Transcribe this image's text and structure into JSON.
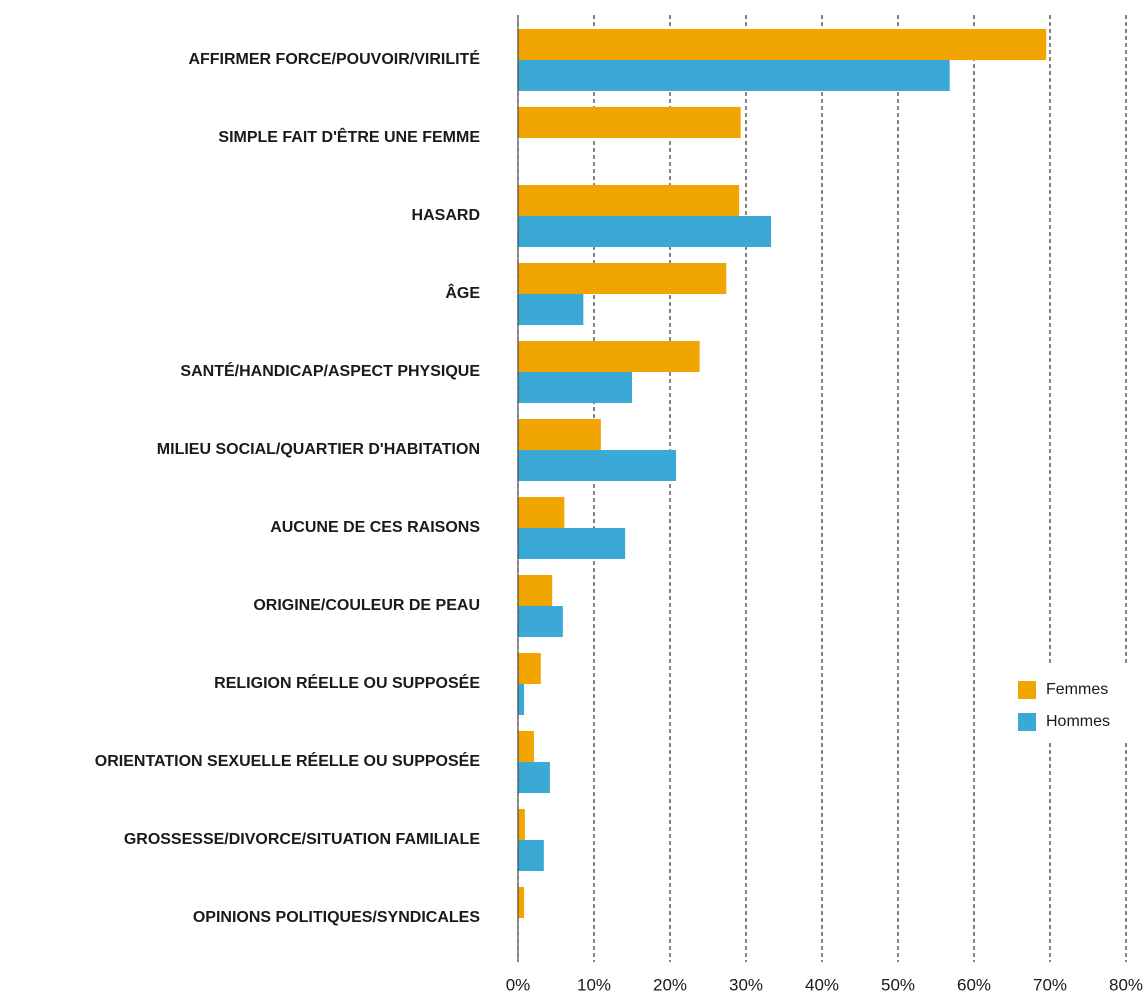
{
  "chart_data": {
    "type": "hbar",
    "categories": [
      "AFFIRMER FORCE/POUVOIR/VIRILITÉ",
      "SIMPLE FAIT D'ÊTRE UNE FEMME",
      "HASARD",
      "ÂGE",
      "SANTÉ/HANDICAP/ASPECT PHYSIQUE",
      "MILIEU SOCIAL/QUARTIER D'HABITATION",
      "AUCUNE DE CES RAISONS",
      "ORIGINE/COULEUR DE PEAU",
      "RELIGION RÉELLE OU SUPPOSÉE",
      "ORIENTATION SEXUELLE RÉELLE OU SUPPOSÉE",
      "GROSSESSE/DIVORCE/SITUATION FAMILIALE",
      "OPINIONS POLITIQUES/SYNDICALES"
    ],
    "series": [
      {
        "name": "Femmes",
        "color": "#f0a500",
        "values": [
          69.5,
          29.3,
          29.1,
          27.4,
          23.9,
          10.9,
          6.1,
          4.5,
          3.0,
          2.1,
          0.9,
          0.8
        ]
      },
      {
        "name": "Hommes",
        "color": "#3aa9d6",
        "values": [
          56.8,
          null,
          33.3,
          8.6,
          15.0,
          20.8,
          14.1,
          5.9,
          0.8,
          4.2,
          3.4,
          null
        ]
      }
    ],
    "xlim": [
      0,
      80
    ],
    "xticks": [
      {
        "value": 0,
        "label": "0%"
      },
      {
        "value": 10,
        "label": "10%"
      },
      {
        "value": 20,
        "label": "20%"
      },
      {
        "value": 30,
        "label": "30%"
      },
      {
        "value": 40,
        "label": "40%"
      },
      {
        "value": 50,
        "label": "50%"
      },
      {
        "value": 60,
        "label": "60%"
      },
      {
        "value": 70,
        "label": "70%"
      },
      {
        "value": 80,
        "label": "80%"
      }
    ],
    "grid": true,
    "legend": "right"
  }
}
